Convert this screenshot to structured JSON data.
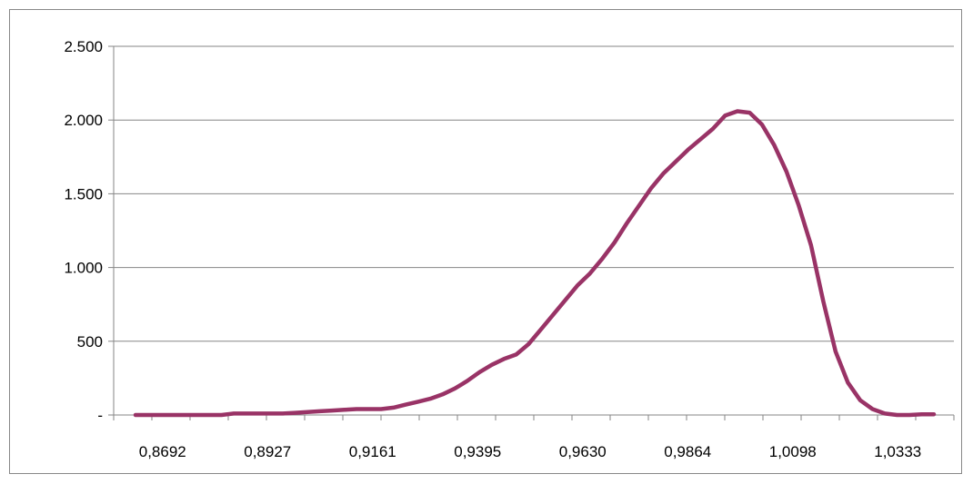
{
  "chart_data": {
    "type": "line",
    "title": "",
    "xlabel": "",
    "ylabel": "",
    "ylim": [
      0,
      2500
    ],
    "y_ticks": [
      {
        "value": 0,
        "label": "-"
      },
      {
        "value": 500,
        "label": "500"
      },
      {
        "value": 1000,
        "label": "1.000"
      },
      {
        "value": 1500,
        "label": "1.500"
      },
      {
        "value": 2000,
        "label": "2.000"
      },
      {
        "value": 2500,
        "label": "2.500"
      }
    ],
    "x_tick_labels": [
      "0,8692",
      "0,8927",
      "0,9161",
      "0,9395",
      "0,9630",
      "0,9864",
      "1,0098",
      "1,0333"
    ],
    "grid": "horizontal",
    "legend": "none",
    "line_color": "#993366",
    "series": [
      {
        "values": [
          0,
          0,
          0,
          0,
          0,
          0,
          0,
          0,
          10,
          10,
          10,
          10,
          10,
          15,
          20,
          25,
          30,
          35,
          40,
          40,
          40,
          50,
          70,
          90,
          110,
          140,
          180,
          230,
          290,
          340,
          380,
          410,
          480,
          580,
          680,
          780,
          880,
          960,
          1060,
          1170,
          1300,
          1420,
          1540,
          1640,
          1720,
          1800,
          1870,
          1940,
          2030,
          2060,
          2050,
          1970,
          1830,
          1650,
          1420,
          1150,
          770,
          430,
          220,
          100,
          40,
          10,
          0,
          0,
          5,
          5
        ]
      }
    ]
  }
}
